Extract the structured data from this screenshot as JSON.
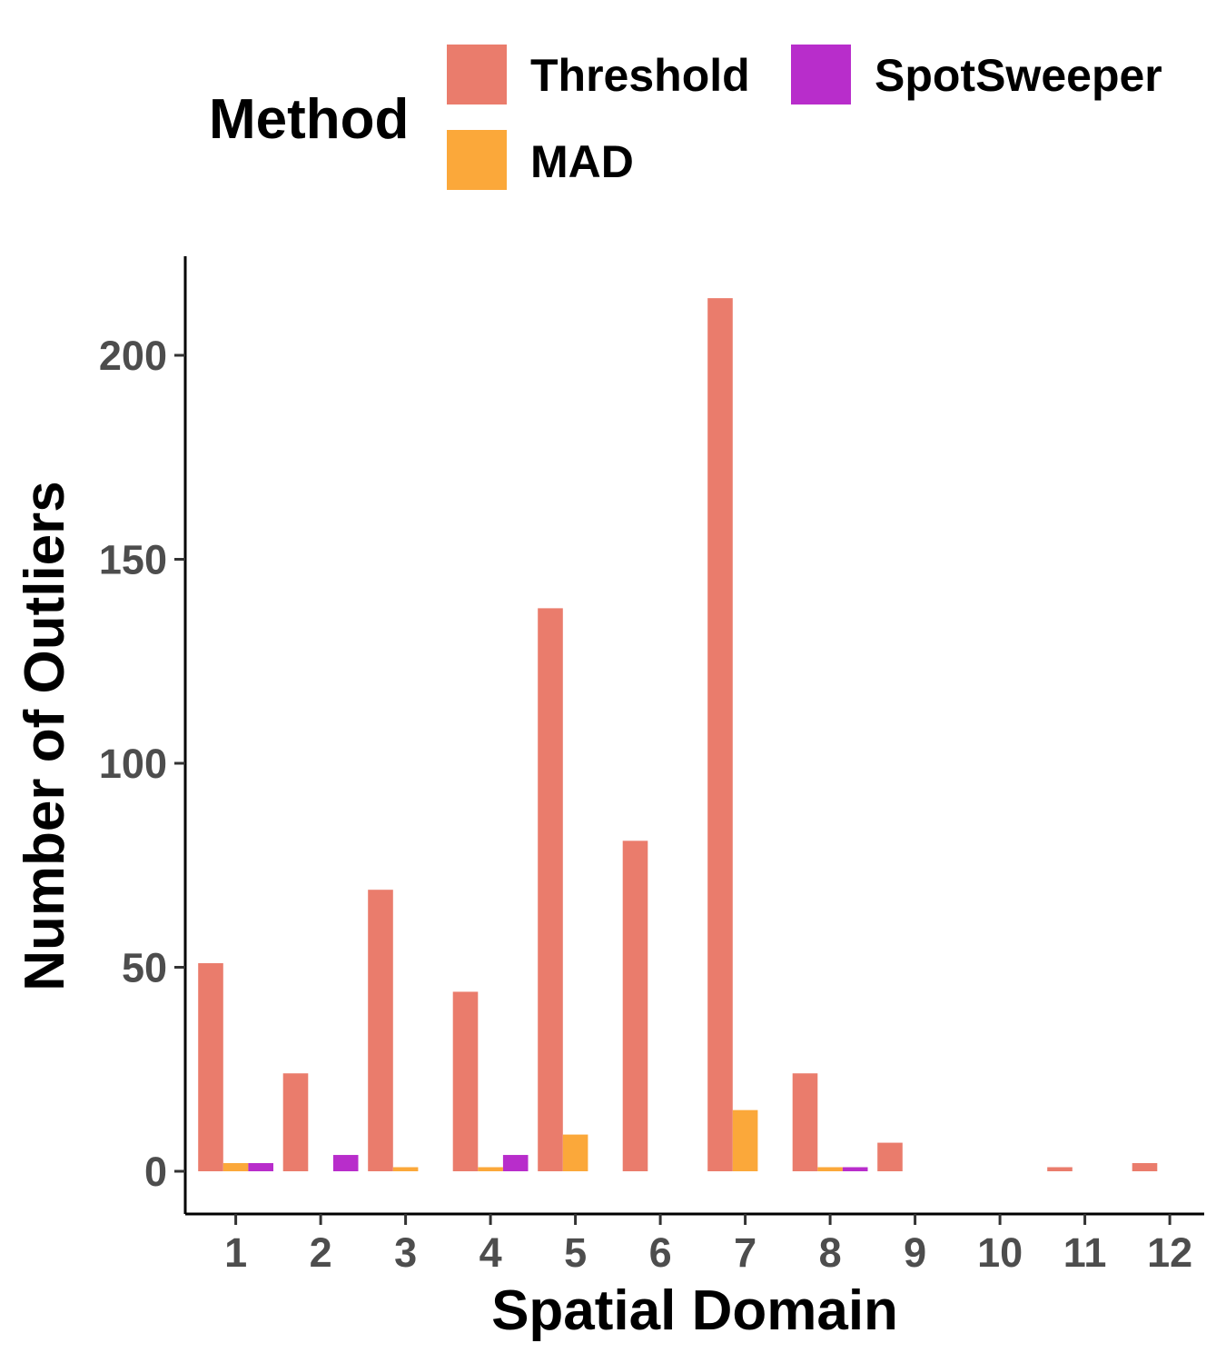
{
  "chart_data": {
    "type": "bar",
    "xlabel": "Spatial Domain",
    "ylabel": "Number of Outliers",
    "ylim": [
      -10,
      220
    ],
    "yticks": [
      0,
      50,
      100,
      150,
      200
    ],
    "categories": [
      "1",
      "2",
      "3",
      "4",
      "5",
      "6",
      "7",
      "8",
      "9",
      "10",
      "11",
      "12"
    ],
    "legend": {
      "title": "Method",
      "placement": "top"
    },
    "grid": false,
    "series": [
      {
        "name": "Threshold",
        "color": "#EA7C6C",
        "values": [
          51,
          24,
          69,
          44,
          138,
          81,
          214,
          24,
          7,
          0,
          1,
          2
        ]
      },
      {
        "name": "MAD",
        "color": "#FBA83A",
        "values": [
          2,
          0,
          1,
          1,
          9,
          0,
          15,
          1,
          0,
          0,
          0,
          0
        ]
      },
      {
        "name": "SpotSweeper",
        "color": "#B82DCB",
        "values": [
          2,
          4,
          0,
          4,
          0,
          0,
          0,
          1,
          0,
          0,
          0,
          0
        ]
      }
    ]
  }
}
